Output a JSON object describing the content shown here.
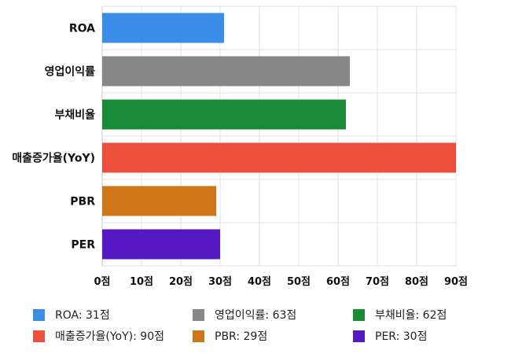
{
  "chart_data": {
    "type": "bar",
    "orientation": "horizontal",
    "categories": [
      "ROA",
      "영업이익률",
      "부채비율",
      "매출증가율(YoY)",
      "PBR",
      "PER"
    ],
    "values": [
      31,
      63,
      62,
      90,
      29,
      30
    ],
    "colors": [
      "#3b8ee8",
      "#878787",
      "#1a8c37",
      "#ec4f3b",
      "#cf7618",
      "#5419c2"
    ],
    "title": "",
    "xlabel": "",
    "ylabel": "",
    "xlim": [
      0,
      90
    ],
    "x_ticks": [
      "0점",
      "10점",
      "20점",
      "30점",
      "40점",
      "50점",
      "60점",
      "70점",
      "80점",
      "90점"
    ],
    "grid": true,
    "legend_position": "bottom",
    "legend": [
      "ROA: 31점",
      "영업이익률: 63점",
      "부채비율: 62점",
      "매출증가율(YoY): 90점",
      "PBR: 29점",
      "PER: 30점"
    ]
  }
}
